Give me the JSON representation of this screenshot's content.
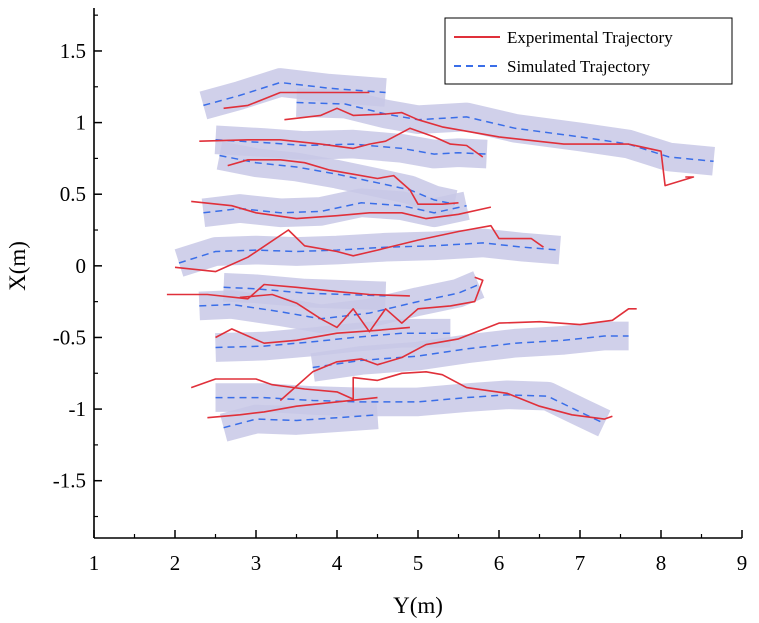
{
  "chart_data": {
    "type": "line",
    "title": "",
    "xlabel": "Y(m)",
    "ylabel": "X(m)",
    "xlim": [
      1,
      9
    ],
    "ylim": [
      -1.9,
      1.8
    ],
    "xticks": [
      1,
      2,
      3,
      4,
      5,
      6,
      7,
      8,
      9
    ],
    "xtick_labels": [
      "1",
      "2",
      "3",
      "4",
      "5",
      "6",
      "7",
      "8",
      "9"
    ],
    "yticks": [
      -1.5,
      -1,
      -0.5,
      0,
      0.5,
      1,
      1.5
    ],
    "ytick_labels": [
      "-1.5",
      "-1",
      "-0.5",
      "0",
      "0.5",
      "1",
      "1.5"
    ],
    "grid": false,
    "legend_position": "top-right",
    "legend": [
      "Experimental Trajectory",
      "Simulated Trajectory"
    ],
    "colors": {
      "experimental": "#e0303a",
      "simulated": "#3a6ee8",
      "band": "#c8c8e6",
      "axis": "#000000"
    },
    "series": [
      {
        "name": "Simulated Trajectory",
        "style": "dashed",
        "band_width": 0.2,
        "trajectories": [
          [
            [
              2.35,
              1.12
            ],
            [
              2.8,
              1.19
            ],
            [
              3.3,
              1.28
            ],
            [
              3.9,
              1.24
            ],
            [
              4.6,
              1.21
            ]
          ],
          [
            [
              3.5,
              1.14
            ],
            [
              4.1,
              1.13
            ],
            [
              4.6,
              1.06
            ],
            [
              5.0,
              1.02
            ],
            [
              5.6,
              1.04
            ],
            [
              6.2,
              0.96
            ],
            [
              7.0,
              0.9
            ],
            [
              7.6,
              0.85
            ],
            [
              8.1,
              0.76
            ],
            [
              8.65,
              0.73
            ]
          ],
          [
            [
              2.5,
              0.88
            ],
            [
              3.1,
              0.86
            ],
            [
              3.6,
              0.84
            ],
            [
              4.2,
              0.85
            ],
            [
              4.8,
              0.82
            ],
            [
              5.2,
              0.78
            ],
            [
              5.5,
              0.79
            ],
            [
              5.85,
              0.78
            ]
          ],
          [
            [
              2.55,
              0.77
            ],
            [
              3.0,
              0.72
            ],
            [
              3.5,
              0.69
            ],
            [
              4.0,
              0.64
            ],
            [
              4.5,
              0.58
            ],
            [
              4.9,
              0.53
            ],
            [
              5.2,
              0.46
            ],
            [
              5.45,
              0.43
            ]
          ],
          [
            [
              2.35,
              0.37
            ],
            [
              2.8,
              0.4
            ],
            [
              3.3,
              0.37
            ],
            [
              3.8,
              0.38
            ],
            [
              4.3,
              0.44
            ],
            [
              4.8,
              0.42
            ],
            [
              5.2,
              0.37
            ],
            [
              5.6,
              0.42
            ]
          ],
          [
            [
              2.05,
              0.02
            ],
            [
              2.5,
              0.1
            ],
            [
              3.0,
              0.11
            ],
            [
              3.5,
              0.1
            ],
            [
              4.0,
              0.11
            ],
            [
              4.6,
              0.13
            ],
            [
              5.2,
              0.14
            ],
            [
              5.8,
              0.16
            ],
            [
              6.3,
              0.13
            ],
            [
              6.75,
              0.11
            ]
          ],
          [
            [
              2.6,
              -0.15
            ],
            [
              3.0,
              -0.16
            ],
            [
              3.6,
              -0.19
            ],
            [
              4.1,
              -0.2
            ],
            [
              4.6,
              -0.21
            ]
          ],
          [
            [
              2.3,
              -0.28
            ],
            [
              2.7,
              -0.27
            ],
            [
              3.3,
              -0.32
            ],
            [
              3.8,
              -0.37
            ],
            [
              4.4,
              -0.33
            ],
            [
              5.0,
              -0.25
            ],
            [
              5.5,
              -0.19
            ],
            [
              5.75,
              -0.13
            ]
          ],
          [
            [
              2.5,
              -0.57
            ],
            [
              3.1,
              -0.56
            ],
            [
              3.7,
              -0.53
            ],
            [
              4.2,
              -0.5
            ],
            [
              4.8,
              -0.47
            ],
            [
              5.4,
              -0.47
            ]
          ],
          [
            [
              3.7,
              -0.71
            ],
            [
              4.3,
              -0.66
            ],
            [
              5.0,
              -0.63
            ],
            [
              5.6,
              -0.58
            ],
            [
              6.2,
              -0.54
            ],
            [
              6.8,
              -0.52
            ],
            [
              7.3,
              -0.49
            ],
            [
              7.6,
              -0.49
            ]
          ],
          [
            [
              2.5,
              -0.92
            ],
            [
              3.1,
              -0.92
            ],
            [
              3.7,
              -0.94
            ],
            [
              4.3,
              -0.95
            ],
            [
              5.0,
              -0.95
            ],
            [
              5.6,
              -0.92
            ],
            [
              6.1,
              -0.9
            ],
            [
              6.6,
              -0.91
            ],
            [
              7.0,
              -1.02
            ],
            [
              7.3,
              -1.1
            ]
          ],
          [
            [
              2.6,
              -1.13
            ],
            [
              3.0,
              -1.07
            ],
            [
              3.5,
              -1.08
            ],
            [
              4.0,
              -1.06
            ],
            [
              4.5,
              -1.04
            ]
          ]
        ]
      },
      {
        "name": "Experimental Trajectory",
        "style": "solid",
        "trajectories": [
          [
            [
              2.6,
              1.1
            ],
            [
              2.9,
              1.12
            ],
            [
              3.3,
              1.21
            ],
            [
              3.9,
              1.21
            ],
            [
              4.4,
              1.21
            ]
          ],
          [
            [
              3.35,
              1.02
            ],
            [
              3.8,
              1.05
            ],
            [
              4.0,
              1.1
            ],
            [
              4.2,
              1.05
            ],
            [
              4.6,
              1.06
            ],
            [
              4.8,
              1.07
            ],
            [
              5.0,
              1.02
            ],
            [
              5.3,
              0.97
            ],
            [
              6.0,
              0.9
            ],
            [
              6.8,
              0.85
            ],
            [
              7.6,
              0.85
            ],
            [
              8.0,
              0.8
            ],
            [
              8.05,
              0.56
            ],
            [
              8.4,
              0.62
            ],
            [
              8.3,
              0.62
            ]
          ],
          [
            [
              2.3,
              0.87
            ],
            [
              2.9,
              0.88
            ],
            [
              3.3,
              0.88
            ],
            [
              3.8,
              0.85
            ],
            [
              4.2,
              0.82
            ],
            [
              4.4,
              0.85
            ],
            [
              4.6,
              0.87
            ],
            [
              4.9,
              0.96
            ],
            [
              5.2,
              0.9
            ],
            [
              5.4,
              0.85
            ],
            [
              5.6,
              0.84
            ],
            [
              5.8,
              0.76
            ]
          ],
          [
            [
              2.65,
              0.7
            ],
            [
              2.9,
              0.74
            ],
            [
              3.3,
              0.74
            ],
            [
              3.6,
              0.72
            ],
            [
              3.9,
              0.67
            ],
            [
              4.2,
              0.64
            ],
            [
              4.5,
              0.61
            ],
            [
              4.7,
              0.63
            ],
            [
              4.9,
              0.53
            ],
            [
              5.0,
              0.43
            ],
            [
              5.3,
              0.43
            ],
            [
              5.5,
              0.44
            ]
          ],
          [
            [
              2.2,
              0.45
            ],
            [
              2.7,
              0.42
            ],
            [
              3.0,
              0.37
            ],
            [
              3.5,
              0.33
            ],
            [
              4.0,
              0.35
            ],
            [
              4.4,
              0.37
            ],
            [
              4.8,
              0.37
            ],
            [
              5.1,
              0.33
            ],
            [
              5.5,
              0.36
            ],
            [
              5.9,
              0.41
            ]
          ],
          [
            [
              2.0,
              -0.01
            ],
            [
              2.5,
              -0.04
            ],
            [
              2.9,
              0.06
            ],
            [
              3.4,
              0.25
            ],
            [
              3.6,
              0.14
            ],
            [
              4.0,
              0.1
            ],
            [
              4.2,
              0.07
            ],
            [
              4.5,
              0.11
            ],
            [
              5.0,
              0.18
            ],
            [
              5.5,
              0.24
            ],
            [
              5.9,
              0.28
            ],
            [
              6.0,
              0.19
            ],
            [
              6.4,
              0.19
            ],
            [
              6.55,
              0.13
            ]
          ],
          [
            [
              1.9,
              -0.2
            ],
            [
              2.4,
              -0.2
            ],
            [
              2.9,
              -0.23
            ],
            [
              3.1,
              -0.13
            ],
            [
              3.5,
              -0.15
            ],
            [
              4.0,
              -0.18
            ],
            [
              4.4,
              -0.2
            ],
            [
              4.9,
              -0.21
            ]
          ],
          [
            [
              2.8,
              -0.22
            ],
            [
              3.2,
              -0.2
            ],
            [
              3.5,
              -0.26
            ],
            [
              3.8,
              -0.37
            ],
            [
              4.0,
              -0.43
            ],
            [
              4.2,
              -0.3
            ],
            [
              4.4,
              -0.46
            ],
            [
              4.6,
              -0.3
            ],
            [
              4.8,
              -0.4
            ],
            [
              5.0,
              -0.3
            ],
            [
              5.4,
              -0.28
            ],
            [
              5.7,
              -0.25
            ],
            [
              5.8,
              -0.1
            ],
            [
              5.7,
              -0.08
            ]
          ],
          [
            [
              2.5,
              -0.5
            ],
            [
              2.7,
              -0.44
            ],
            [
              3.1,
              -0.54
            ],
            [
              3.5,
              -0.52
            ],
            [
              4.0,
              -0.47
            ],
            [
              4.5,
              -0.45
            ],
            [
              4.9,
              -0.43
            ]
          ],
          [
            [
              3.3,
              -0.94
            ],
            [
              3.7,
              -0.74
            ],
            [
              4.0,
              -0.67
            ],
            [
              4.3,
              -0.65
            ],
            [
              4.5,
              -0.69
            ],
            [
              4.8,
              -0.64
            ],
            [
              5.1,
              -0.55
            ],
            [
              5.5,
              -0.51
            ],
            [
              6.0,
              -0.4
            ],
            [
              6.5,
              -0.39
            ],
            [
              7.0,
              -0.41
            ],
            [
              7.4,
              -0.38
            ],
            [
              7.6,
              -0.3
            ],
            [
              7.7,
              -0.3
            ]
          ],
          [
            [
              2.2,
              -0.85
            ],
            [
              2.5,
              -0.79
            ],
            [
              3.0,
              -0.79
            ],
            [
              3.2,
              -0.83
            ],
            [
              3.6,
              -0.86
            ],
            [
              4.0,
              -0.88
            ],
            [
              4.2,
              -0.93
            ],
            [
              4.2,
              -0.78
            ],
            [
              4.5,
              -0.8
            ],
            [
              4.8,
              -0.75
            ],
            [
              5.1,
              -0.74
            ],
            [
              5.3,
              -0.76
            ],
            [
              5.6,
              -0.85
            ],
            [
              6.1,
              -0.89
            ],
            [
              6.5,
              -0.98
            ],
            [
              6.9,
              -1.04
            ],
            [
              7.3,
              -1.07
            ],
            [
              7.4,
              -1.05
            ]
          ],
          [
            [
              2.4,
              -1.06
            ],
            [
              2.8,
              -1.04
            ],
            [
              3.1,
              -1.02
            ],
            [
              3.5,
              -0.98
            ],
            [
              4.0,
              -0.95
            ],
            [
              4.5,
              -0.92
            ]
          ]
        ]
      }
    ]
  }
}
